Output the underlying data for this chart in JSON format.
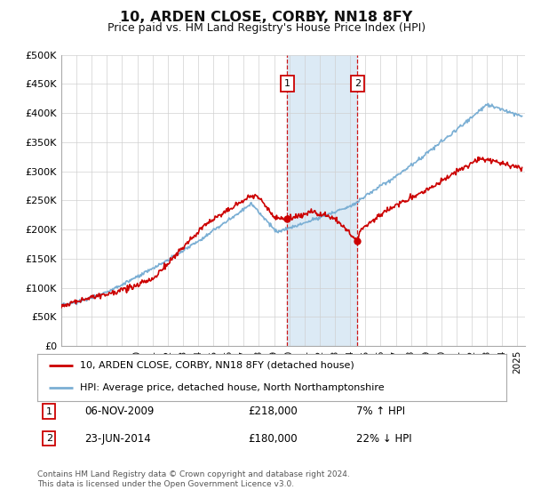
{
  "title": "10, ARDEN CLOSE, CORBY, NN18 8FY",
  "subtitle": "Price paid vs. HM Land Registry's House Price Index (HPI)",
  "ylabel_ticks": [
    "£0",
    "£50K",
    "£100K",
    "£150K",
    "£200K",
    "£250K",
    "£300K",
    "£350K",
    "£400K",
    "£450K",
    "£500K"
  ],
  "ytick_values": [
    0,
    50000,
    100000,
    150000,
    200000,
    250000,
    300000,
    350000,
    400000,
    450000,
    500000
  ],
  "ylim": [
    0,
    500000
  ],
  "xlim_start": 1995,
  "xlim_end": 2025.5,
  "hpi_color": "#7bafd4",
  "price_color": "#cc0000",
  "sale1_date": 2009.85,
  "sale1_price": 218000,
  "sale2_date": 2014.48,
  "sale2_price": 180000,
  "shade_start": 2009.85,
  "shade_end": 2014.48,
  "shade_color": "#dceaf5",
  "legend_entry1": "10, ARDEN CLOSE, CORBY, NN18 8FY (detached house)",
  "legend_entry2": "HPI: Average price, detached house, North Northamptonshire",
  "annotation1_label": "1",
  "annotation1_text": "06-NOV-2009",
  "annotation1_price": "£218,000",
  "annotation1_hpi": "7% ↑ HPI",
  "annotation2_label": "2",
  "annotation2_text": "23-JUN-2014",
  "annotation2_price": "£180,000",
  "annotation2_hpi": "22% ↓ HPI",
  "footer": "Contains HM Land Registry data © Crown copyright and database right 2024.\nThis data is licensed under the Open Government Licence v3.0.",
  "background_color": "#ffffff",
  "grid_color": "#d0d0d0"
}
